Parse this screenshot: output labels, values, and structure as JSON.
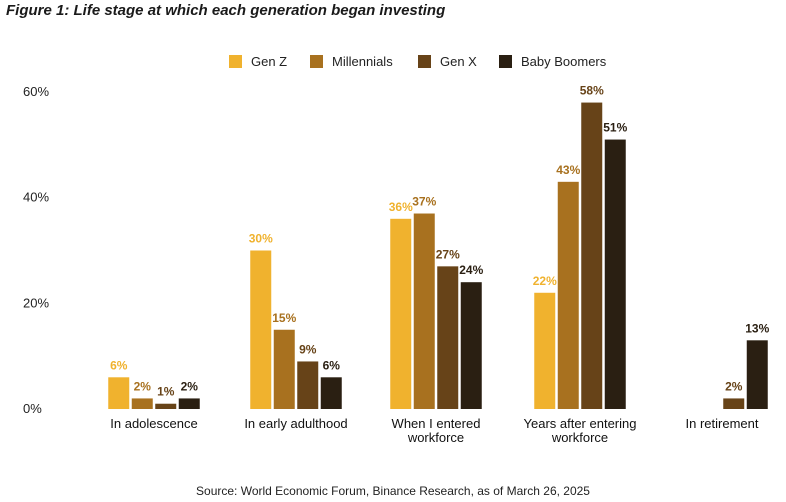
{
  "figure": {
    "title": "Figure 1: Life stage at which each generation began investing",
    "source": "Source: World Economic Forum, Binance Research, as of March 26, 2025"
  },
  "chart_data": {
    "type": "bar",
    "title": "Figure 1: Life stage at which each generation began investing",
    "xlabel": "",
    "ylabel": "",
    "ylim": [
      0,
      60
    ],
    "yticks": [
      "0%",
      "20%",
      "40%",
      "60%"
    ],
    "grid": false,
    "legend_position": "top-center",
    "categories": [
      [
        "In adolescence"
      ],
      [
        "In early adulthood"
      ],
      [
        "When I entered",
        "workforce"
      ],
      [
        "Years after entering",
        "workforce"
      ],
      [
        "In retirement"
      ]
    ],
    "series": [
      {
        "name": "Gen Z",
        "color": "#f0b22e",
        "values": [
          6,
          30,
          36,
          22,
          null
        ],
        "labels": [
          "6%",
          "30%",
          "36%",
          "22%",
          ""
        ]
      },
      {
        "name": "Millennials",
        "color": "#a8711f",
        "values": [
          2,
          15,
          37,
          43,
          0
        ],
        "labels": [
          "2%",
          "15%",
          "37%",
          "43%",
          ""
        ]
      },
      {
        "name": "Gen X",
        "color": "#674318",
        "values": [
          1,
          9,
          27,
          58,
          2
        ],
        "labels": [
          "1%",
          "9%",
          "27%",
          "58%",
          "2%"
        ]
      },
      {
        "name": "Baby Boomers",
        "color": "#2a1f12",
        "values": [
          2,
          6,
          24,
          51,
          13
        ],
        "labels": [
          "2%",
          "6%",
          "24%",
          "51%",
          "13%"
        ]
      }
    ]
  }
}
